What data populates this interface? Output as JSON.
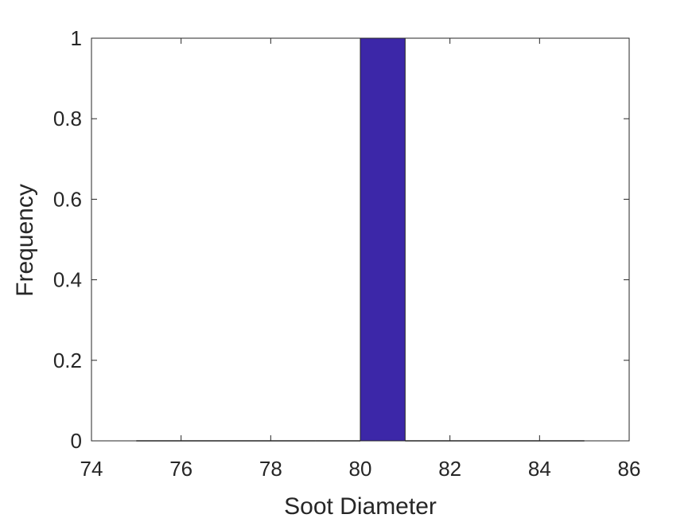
{
  "chart_data": {
    "type": "bar",
    "bin_edges": [
      75,
      76,
      77,
      78,
      79,
      80,
      81,
      82,
      83,
      84,
      85
    ],
    "values": [
      0,
      0,
      0,
      0,
      0,
      1,
      0,
      0,
      0,
      0
    ],
    "xlabel": "Soot Diameter",
    "ylabel": "Frequency",
    "xlim": [
      74,
      86
    ],
    "ylim": [
      0,
      1
    ],
    "xticks": [
      74,
      76,
      78,
      80,
      82,
      84,
      86
    ],
    "xtick_labels": [
      "74",
      "76",
      "78",
      "80",
      "82",
      "84",
      "86"
    ],
    "yticks": [
      0,
      0.2,
      0.4,
      0.6,
      0.8,
      1
    ],
    "ytick_labels": [
      "0",
      "0.2",
      "0.4",
      "0.6",
      "0.8",
      "1"
    ],
    "bar_color": "#3c27a8",
    "grid": false,
    "legend": "none"
  }
}
